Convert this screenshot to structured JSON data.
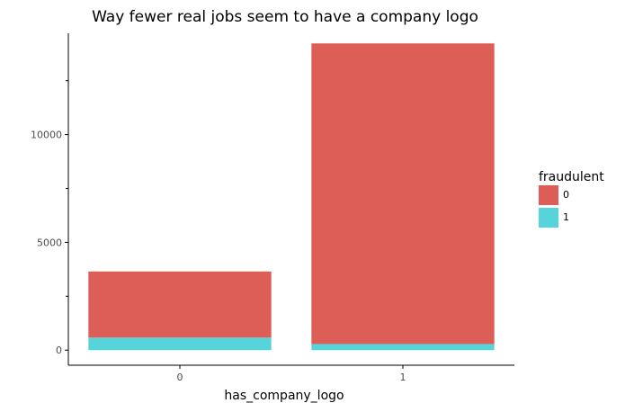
{
  "chart_data": {
    "type": "bar",
    "stacked": true,
    "title": "Way fewer real jobs seem to have a company logo",
    "xlabel": "has_company_logo",
    "ylabel": "",
    "categories": [
      "0",
      "1"
    ],
    "series": [
      {
        "name": "0",
        "color": "#dd5e56",
        "values": [
          3067,
          13947
        ]
      },
      {
        "name": "1",
        "color": "#57d4d9",
        "values": [
          583,
          283
        ]
      }
    ],
    "ylim": [
      -700,
      14700
    ],
    "yticks": [
      0,
      5000,
      10000
    ],
    "yticks_labels": [
      "0",
      "5000",
      "10000"
    ],
    "legend": {
      "title": "fraudulent",
      "placement": "right",
      "labels": [
        "0",
        "1"
      ]
    },
    "grid": false
  }
}
